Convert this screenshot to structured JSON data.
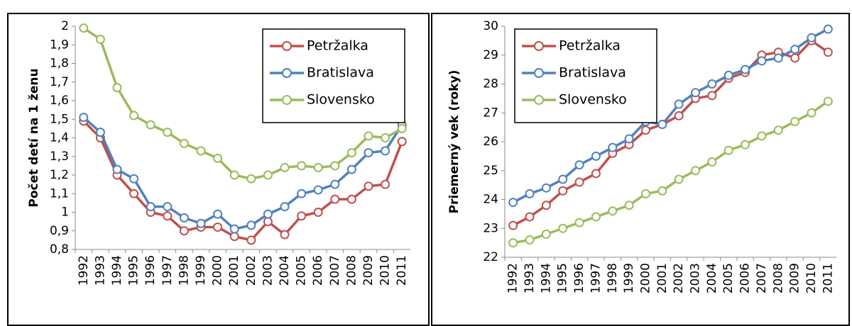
{
  "chart_data": [
    {
      "type": "line",
      "ylabel": "Počet detí na 1 ženu",
      "categories": [
        "1992",
        "1993",
        "1994",
        "1995",
        "1996",
        "1997",
        "1998",
        "1999",
        "2000",
        "2001",
        "2002",
        "2003",
        "2004",
        "2005",
        "2006",
        "2007",
        "2008",
        "2009",
        "2010",
        "2011"
      ],
      "series": [
        {
          "name": "Petržalka",
          "color": "#c0504d",
          "values": [
            1.49,
            1.4,
            1.2,
            1.1,
            1.0,
            0.98,
            0.9,
            0.92,
            0.92,
            0.87,
            0.85,
            0.95,
            0.88,
            0.98,
            1.0,
            1.07,
            1.07,
            1.14,
            1.15,
            1.38
          ]
        },
        {
          "name": "Bratislava",
          "color": "#4f81bd",
          "values": [
            1.51,
            1.43,
            1.23,
            1.18,
            1.03,
            1.03,
            0.97,
            0.94,
            0.99,
            0.91,
            0.93,
            0.99,
            1.03,
            1.1,
            1.12,
            1.15,
            1.23,
            1.32,
            1.33,
            1.47
          ]
        },
        {
          "name": "Slovensko",
          "color": "#9bbb59",
          "values": [
            1.99,
            1.93,
            1.67,
            1.52,
            1.47,
            1.43,
            1.37,
            1.33,
            1.29,
            1.2,
            1.18,
            1.2,
            1.24,
            1.25,
            1.24,
            1.25,
            1.32,
            1.41,
            1.4,
            1.45
          ]
        }
      ],
      "ylim": [
        0.8,
        2
      ],
      "yticks": [
        {
          "value": 0.8,
          "label": "0,8"
        },
        {
          "value": 0.9,
          "label": "0,9"
        },
        1,
        {
          "value": 1.1,
          "label": "1,1"
        },
        {
          "value": 1.2,
          "label": "1,2"
        },
        {
          "value": 1.3,
          "label": "1,3"
        },
        {
          "value": 1.4,
          "label": "1,4"
        },
        {
          "value": 1.5,
          "label": "1,5"
        },
        {
          "value": 1.6,
          "label": "1,6"
        },
        {
          "value": 1.7,
          "label": "1,7"
        },
        {
          "value": 1.8,
          "label": "1,8"
        },
        {
          "value": 1.9,
          "label": "1,9"
        },
        2
      ],
      "grid": false,
      "legend": "upper right"
    },
    {
      "type": "line",
      "ylabel": "Priemerný vek  (roky)",
      "categories": [
        "1992",
        "1993",
        "1994",
        "1995",
        "1996",
        "1997",
        "1998",
        "1999",
        "2000",
        "2001",
        "2002",
        "2003",
        "2004",
        "2005",
        "2006",
        "2007",
        "2008",
        "2009",
        "2010",
        "2011"
      ],
      "series": [
        {
          "name": "Petržalka",
          "color": "#c0504d",
          "values": [
            23.1,
            23.4,
            23.8,
            24.3,
            24.6,
            24.9,
            25.6,
            25.9,
            26.4,
            26.6,
            26.9,
            27.5,
            27.6,
            28.2,
            28.4,
            29.0,
            29.1,
            28.9,
            29.5,
            29.1
          ]
        },
        {
          "name": "Bratislava",
          "color": "#4f81bd",
          "values": [
            23.9,
            24.2,
            24.4,
            24.7,
            25.2,
            25.5,
            25.8,
            26.1,
            26.7,
            26.6,
            27.3,
            27.7,
            28.0,
            28.3,
            28.5,
            28.8,
            28.9,
            29.2,
            29.6,
            29.9
          ]
        },
        {
          "name": "Slovensko",
          "color": "#9bbb59",
          "values": [
            22.5,
            22.6,
            22.8,
            23.0,
            23.2,
            23.4,
            23.6,
            23.8,
            24.2,
            24.3,
            24.7,
            25.0,
            25.3,
            25.7,
            25.9,
            26.2,
            26.4,
            26.7,
            27.0,
            27.4
          ]
        }
      ],
      "ylim": [
        22,
        30
      ],
      "yticks": [
        22,
        23,
        24,
        25,
        26,
        27,
        28,
        29,
        30
      ],
      "grid": false,
      "legend": "upper left"
    }
  ]
}
